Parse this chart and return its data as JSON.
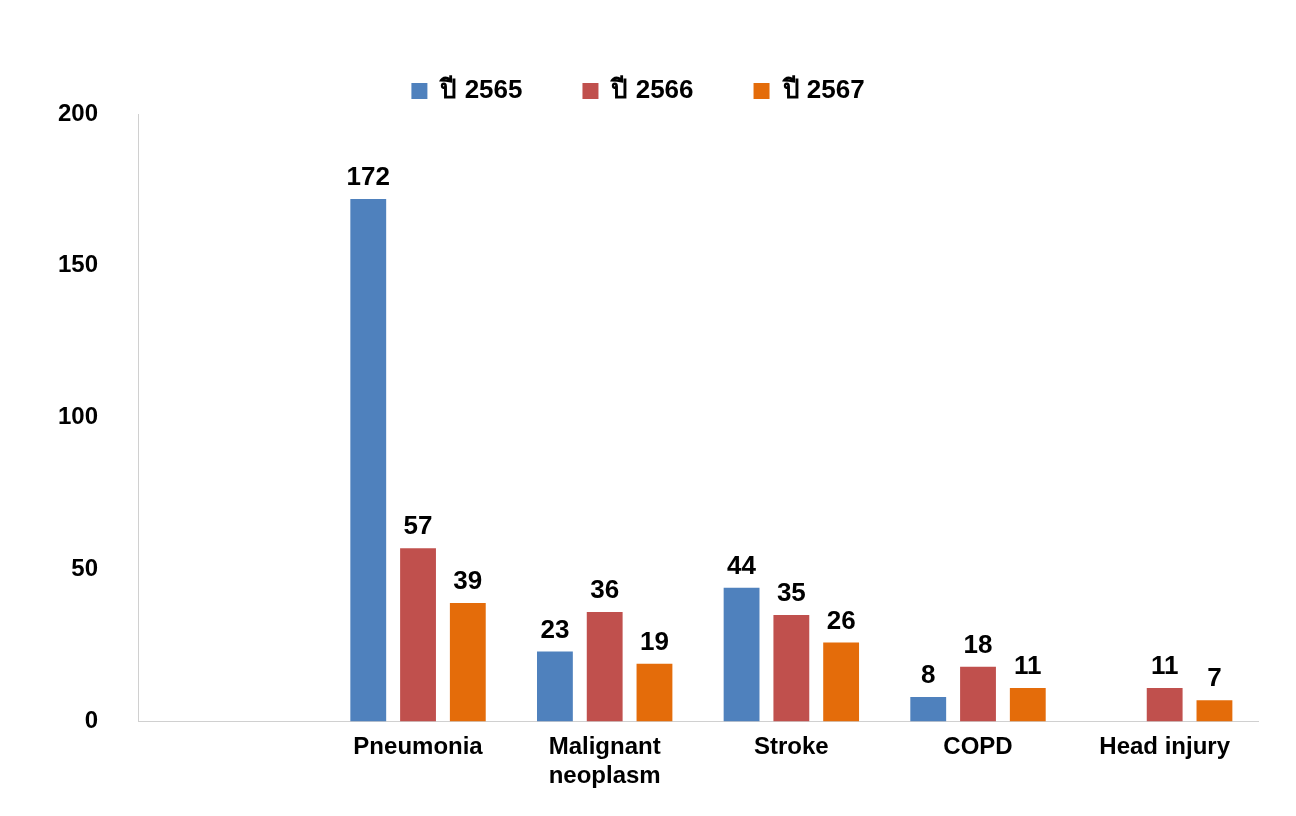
{
  "chart_data": {
    "type": "bar",
    "categories": [
      null,
      "Pneumonia",
      "Malignant neoplasm",
      "Stroke",
      "COPD",
      "Head injury"
    ],
    "series": [
      {
        "name": "ปี 2565",
        "color": "#4f81bd",
        "values": [
          null,
          172,
          23,
          44,
          8,
          null
        ]
      },
      {
        "name": "ปี 2566",
        "color": "#c0504d",
        "values": [
          null,
          57,
          36,
          35,
          18,
          11
        ]
      },
      {
        "name": "ปี 2567",
        "color": "#e46c0a",
        "values": [
          null,
          39,
          19,
          26,
          11,
          7
        ]
      }
    ],
    "ylim": [
      0,
      200
    ],
    "yticks": [
      0,
      50,
      100,
      150,
      200
    ],
    "grid": false,
    "legend": "top",
    "data_labels": true
  }
}
